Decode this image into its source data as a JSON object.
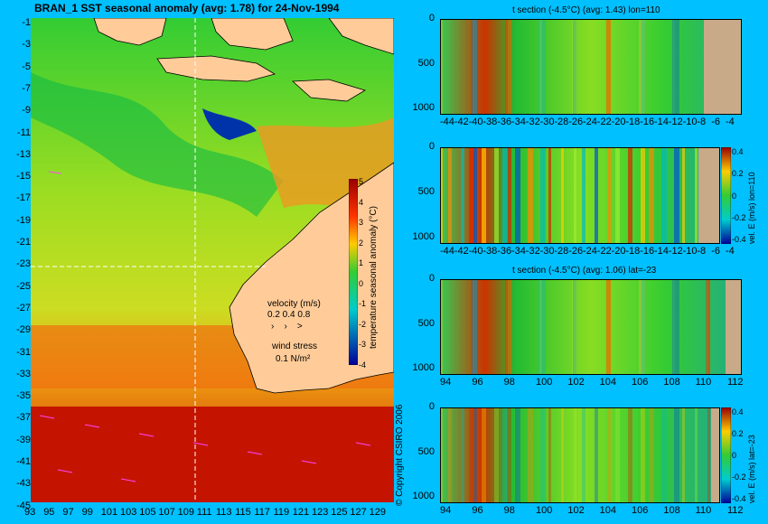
{
  "main_title": "BRAN_1 SST seasonal anomaly (avg: 1.78) for 24-Nov-1994",
  "map": {
    "lat_ticks": [
      "-1",
      "-3",
      "-5",
      "-7",
      "-9",
      "-11",
      "-13",
      "-15",
      "-17",
      "-19",
      "-21",
      "-23",
      "-25",
      "-27",
      "-29",
      "-31",
      "-33",
      "-35",
      "-37",
      "-39",
      "-41",
      "-43",
      "-45"
    ],
    "lon_ticks": [
      "93",
      "95",
      "97",
      "99",
      "101",
      "103",
      "105",
      "107",
      "109",
      "111",
      "113",
      "115",
      "117",
      "119",
      "121",
      "123",
      "125",
      "127",
      "129"
    ],
    "colorbar_label": "temperature seasonal anomaly (°C)",
    "colorbar_ticks": [
      "5",
      "4",
      "3",
      "2",
      "1",
      "0",
      "-1",
      "-2",
      "-3",
      "-4"
    ],
    "velocity_label": "velocity (m/s)",
    "velocity_scale": "0.2 0.4 0.8",
    "wind_label": "wind stress",
    "wind_scale": "0.1 N/m²",
    "copyright": "© Copyright CSIRO 2006"
  },
  "panels": [
    {
      "title": "t section (-4.5°C) (avg: 1.43) lon=110",
      "y_ticks": [
        "0",
        "500",
        "1000"
      ],
      "x_ticks": [
        "-44",
        "-42",
        "-40",
        "-38",
        "-36",
        "-34",
        "-32",
        "-30",
        "-28",
        "-26",
        "-24",
        "-22",
        "-20",
        "-18",
        "-16",
        "-14",
        "-12",
        "-10",
        "-8",
        "-6",
        "-4"
      ]
    },
    {
      "title": "",
      "y_ticks": [
        "0",
        "500",
        "1000"
      ],
      "x_ticks": [
        "-44",
        "-42",
        "-40",
        "-38",
        "-36",
        "-34",
        "-32",
        "-30",
        "-28",
        "-26",
        "-24",
        "-22",
        "-20",
        "-18",
        "-16",
        "-14",
        "-12",
        "-10",
        "-8",
        "-6",
        "-4"
      ],
      "cb_ticks": [
        "0.4",
        "0.2",
        "0",
        "-0.2",
        "-0.4"
      ],
      "cb_label": "vel. E (m/s) lon=110"
    },
    {
      "title": "t section (-4.5°C) (avg: 1.06) lat=-23",
      "y_ticks": [
        "0",
        "500",
        "1000"
      ],
      "x_ticks": [
        "94",
        "96",
        "98",
        "100",
        "102",
        "104",
        "106",
        "108",
        "110",
        "112"
      ]
    },
    {
      "title": "",
      "y_ticks": [
        "0",
        "500",
        "1000"
      ],
      "x_ticks": [
        "94",
        "96",
        "98",
        "100",
        "102",
        "104",
        "106",
        "108",
        "110",
        "112"
      ],
      "cb_ticks": [
        "0.4",
        "0.2",
        "0",
        "-0.2",
        "-0.4"
      ],
      "cb_label": "vel. E (m/s) lat=-23"
    }
  ]
}
